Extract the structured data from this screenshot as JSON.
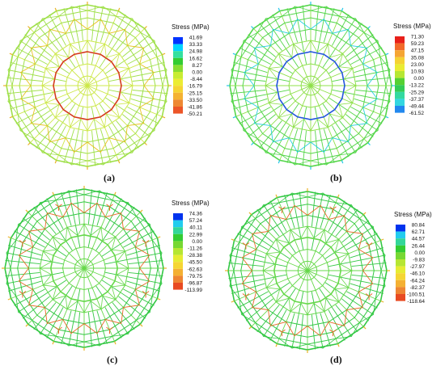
{
  "figure": {
    "panels": [
      {
        "caption": "(a)",
        "legend_title": "Stress (MPa)",
        "legend_values": [
          "41.69",
          "33.33",
          "24.98",
          "16.62",
          "8.27",
          "0.00",
          "-8.44",
          "-16.79",
          "-25.15",
          "-33.50",
          "-41.86",
          "-50.21"
        ],
        "legend_colors": [
          "#0033ff",
          "#00d4ff",
          "#33e0a0",
          "#33cc33",
          "#88dd33",
          "#c8ec33",
          "#ecec33",
          "#f5d433",
          "#f4b233",
          "#ee8833",
          "#ec5528"
        ],
        "mesh_outer": "#9fe04a",
        "mesh_inner": "#cde84a",
        "ring_color": "#d43a1c",
        "accent": "#e8c020",
        "support_color": "#e8b428"
      },
      {
        "caption": "(b)",
        "legend_title": "Stress (MPa)",
        "legend_values": [
          "71.30",
          "59.23",
          "47.15",
          "35.08",
          "23.00",
          "10.93",
          "0.00",
          "-13.22",
          "-25.29",
          "-37.37",
          "-49.44",
          "-61.52"
        ],
        "legend_colors": [
          "#e8201a",
          "#f26a2a",
          "#f5a533",
          "#f5d233",
          "#eaec33",
          "#b6e733",
          "#55d133",
          "#33cc55",
          "#33d9a0",
          "#33d6e0",
          "#2288ee"
        ],
        "mesh_outer": "#55d64a",
        "mesh_inner": "#8fe04a",
        "ring_color": "#2255dd",
        "accent": "#2ad0e0",
        "support_color": "#28c8e8"
      },
      {
        "caption": "(c)",
        "legend_title": "Stress (MPa)",
        "legend_values": [
          "74.36",
          "57.24",
          "40.11",
          "22.99",
          "0.00",
          "-11.26",
          "-28.38",
          "-45.50",
          "-62.63",
          "-79.75",
          "-96.87",
          "-113.99"
        ],
        "legend_colors": [
          "#0033ee",
          "#22ccee",
          "#33d699",
          "#33cc33",
          "#77d833",
          "#b6e633",
          "#e6ec33",
          "#f5d633",
          "#f4b033",
          "#ee8533",
          "#e84a22"
        ],
        "mesh_outer": "#33c844",
        "mesh_inner": "#66d84a",
        "ring_color": "#66d84a",
        "accent": "#e86a26",
        "support_color": "#e8b428"
      },
      {
        "caption": "(d)",
        "legend_title": "Stress (MPa)",
        "legend_values": [
          "80.84",
          "62.71",
          "44.57",
          "26.44",
          "0.00",
          "-9.83",
          "-27.97",
          "-46.10",
          "-64.24",
          "-82.37",
          "-100.51",
          "-118.64"
        ],
        "legend_colors": [
          "#0033ee",
          "#22ccee",
          "#33d699",
          "#33cc33",
          "#77d833",
          "#b6e633",
          "#e6ec33",
          "#f5d633",
          "#f4b033",
          "#ee8533",
          "#e84a22"
        ],
        "mesh_outer": "#33c844",
        "mesh_inner": "#66d84a",
        "ring_color": "#66d84a",
        "accent": "#e86a26",
        "support_color": "#e8b428"
      }
    ]
  }
}
